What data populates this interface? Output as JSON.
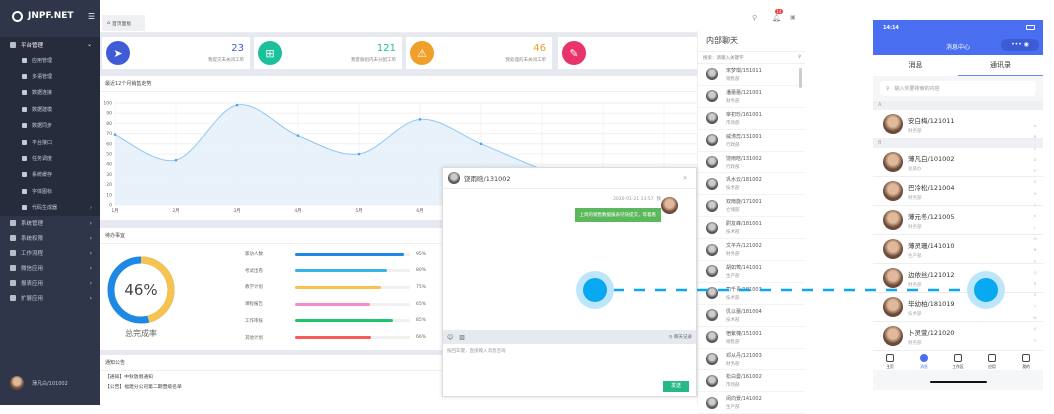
{
  "app": {
    "logo": "JNPF.NET",
    "tab": "首页面板",
    "notif_count": "14",
    "user": "薄凡白/101002"
  },
  "sidebar": {
    "parent": "平台管理",
    "children": [
      "应用管理",
      "多语管理",
      "数据连接",
      "数据建模",
      "数据同步",
      "平台接口",
      "任务调度",
      "系统缓存",
      "字体图标",
      "代码生成器"
    ],
    "items": [
      "系统管理",
      "系统权限",
      "工作流程",
      "微信应用",
      "报表应用",
      "扩展应用"
    ]
  },
  "stats": [
    {
      "value": "23",
      "label": "我提交未关闭工单",
      "color": "#3f5bd6",
      "icon": "paper-plane-icon"
    },
    {
      "value": "121",
      "label": "我客服组内未分配工单",
      "color": "#1cc09b",
      "icon": "sitemap-icon"
    },
    {
      "value": "46",
      "label": "我处理的未关闭工单",
      "color": "#f0a02a",
      "icon": "warning-icon"
    },
    {
      "value": "",
      "label": "",
      "color": "#e8336b",
      "icon": "edit-icon"
    }
  ],
  "chart_data": {
    "type": "area",
    "title": "最近12个月销售走势",
    "categories": [
      "1月",
      "2月",
      "3月",
      "4月",
      "5月",
      "6月",
      "7月"
    ],
    "values": [
      69,
      44,
      98,
      68,
      50,
      84,
      60
    ],
    "ylim": [
      0,
      100
    ],
    "yticks": [
      0,
      10,
      20,
      30,
      40,
      50,
      60,
      70,
      80,
      90,
      100
    ],
    "grid": true,
    "color": "#8ec8f4"
  },
  "todo": {
    "title": "待办事宜",
    "rate": "46%",
    "rate_value": 46,
    "rate_label": "总完成率",
    "items": [
      {
        "label": "家访人数",
        "pct": "95%",
        "value": 95,
        "color": "#1e88e5"
      },
      {
        "label": "考试出卷",
        "pct": "80%",
        "value": 80,
        "color": "#36b4e5"
      },
      {
        "label": "教学计划",
        "pct": "75%",
        "value": 75,
        "color": "#f7c34e"
      },
      {
        "label": "课程报告",
        "pct": "65%",
        "value": 65,
        "color": "#f78bd0"
      },
      {
        "label": "工作审核",
        "pct": "85%",
        "value": 85,
        "color": "#1dc46a"
      },
      {
        "label": "其他计划",
        "pct": "66%",
        "value": 66,
        "color": "#f55b5b"
      }
    ]
  },
  "notice": {
    "title": "通知公告",
    "items": [
      {
        "text": "【通知】中秋放假通知",
        "date": "07-21"
      },
      {
        "text": "【公告】福建分公司第二期晋级名单",
        "date": "07-21"
      }
    ]
  },
  "chat": {
    "title": "内部聊天",
    "search_label": "搜索：",
    "search_placeholder": "请输入关键字",
    "contacts": [
      {
        "name": "宋梦琪/151011",
        "dept": "销售部"
      },
      {
        "name": "潘蕾蕾/121001",
        "dept": "财务部"
      },
      {
        "name": "宰初珍/161001",
        "dept": "市场部"
      },
      {
        "name": "威涛蕊/131001",
        "dept": "行政部"
      },
      {
        "name": "饶雨晗/131002",
        "dept": "行政部"
      },
      {
        "name": "巩水云/181002",
        "dept": "技术部"
      },
      {
        "name": "双雨旋/171001",
        "dept": "仓储部"
      },
      {
        "name": "尉友峰/181001",
        "dept": "技术部"
      },
      {
        "name": "文平卉/121002",
        "dept": "财务部"
      },
      {
        "name": "胡如莺/141001",
        "dept": "生产部"
      },
      {
        "name": "司千青/181003",
        "dept": "技术部"
      },
      {
        "name": "仉以蕾/181004",
        "dept": "技术部"
      },
      {
        "name": "宿紫槐/151001",
        "dept": "销售部"
      },
      {
        "name": "邓从丹/121003",
        "dept": "财务部"
      },
      {
        "name": "松白曼/161002",
        "dept": "市场部"
      },
      {
        "name": "闵向景/141002",
        "dept": "生产部"
      }
    ]
  },
  "dialog": {
    "title": "饶雨晗/131002",
    "time": "2020-01-21 13:57",
    "me": "我",
    "message": "上周的销售数据报表尽快提交，等着看",
    "history": "聊天记录",
    "placeholder": "按回车键，直接输入消息咨询",
    "send": "发送"
  },
  "phone": {
    "time": "14:14",
    "title": "消息中心",
    "tabs": [
      "消息",
      "通讯录"
    ],
    "search_placeholder": "输入你要搜索的内容",
    "sections": [
      {
        "letter": "A",
        "contacts": [
          {
            "name": "安白梅/121011",
            "dept": "财务部"
          }
        ]
      },
      {
        "letter": "B",
        "contacts": [
          {
            "name": "薄凡白/101002",
            "dept": "总裁办"
          },
          {
            "name": "巴冷松/121004",
            "dept": "财务部"
          },
          {
            "name": "薄元冬/121005",
            "dept": "财务部"
          },
          {
            "name": "薄灵珊/141010",
            "dept": "生产部"
          },
          {
            "name": "边依丝/121012",
            "dept": "财务部"
          },
          {
            "name": "毕幼柏/181019",
            "dept": "技术部"
          },
          {
            "name": "卜灵萱/121020",
            "dept": "财务部"
          }
        ]
      }
    ],
    "alphabet": [
      "A",
      "B",
      "C",
      "D",
      "F",
      "G",
      "H",
      "J",
      "K",
      "L",
      "M",
      "N",
      "P",
      "Q",
      "R",
      "S",
      "T",
      "W",
      "X",
      "Y",
      "Z"
    ],
    "bottom_tabs": [
      "主页",
      "消息",
      "工作区",
      "应用",
      "我的"
    ]
  }
}
